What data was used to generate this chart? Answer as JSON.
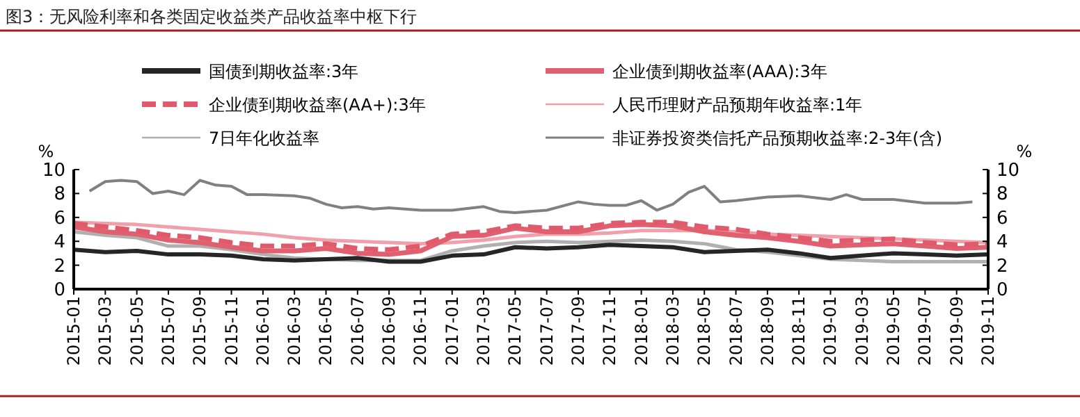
{
  "chart_data": {
    "type": "line",
    "title": "图3：无风险利率和各类固定收益类产品收益率中枢下行",
    "ylabel": "%",
    "y2label": "%",
    "xlim": [
      "2015-01",
      "2019-11"
    ],
    "xticks": [
      "2015-01",
      "2015-03",
      "2015-05",
      "2015-07",
      "2015-09",
      "2015-11",
      "2016-01",
      "2016-03",
      "2016-05",
      "2016-07",
      "2016-09",
      "2016-11",
      "2017-01",
      "2017-03",
      "2017-05",
      "2017-07",
      "2017-09",
      "2017-11",
      "2018-01",
      "2018-03",
      "2018-05",
      "2018-07",
      "2018-09",
      "2018-11",
      "2019-01",
      "2019-03",
      "2019-05",
      "2019-07",
      "2019-09",
      "2019-11"
    ],
    "ylim": [
      0,
      10
    ],
    "yticks": [
      0,
      2,
      4,
      6,
      8,
      10
    ],
    "y2lim": [
      0,
      10
    ],
    "y2ticks": [
      0,
      2,
      4,
      6,
      8,
      10
    ],
    "legend": "top",
    "grid": false,
    "marker": "none",
    "x": [
      "2015-01",
      "2015-03",
      "2015-05",
      "2015-07",
      "2015-09",
      "2015-11",
      "2016-01",
      "2016-03",
      "2016-05",
      "2016-07",
      "2016-09",
      "2016-11",
      "2017-01",
      "2017-03",
      "2017-05",
      "2017-07",
      "2017-09",
      "2017-11",
      "2018-01",
      "2018-03",
      "2018-05",
      "2018-07",
      "2018-09",
      "2018-11",
      "2019-01",
      "2019-03",
      "2019-05",
      "2019-07",
      "2019-09",
      "2019-11"
    ],
    "series": [
      {
        "name": "国债到期收益率:3年",
        "color": "#262626",
        "values": [
          3.3,
          3.1,
          3.2,
          2.9,
          2.9,
          2.8,
          2.5,
          2.4,
          2.5,
          2.6,
          2.3,
          2.3,
          2.8,
          2.9,
          3.5,
          3.4,
          3.5,
          3.7,
          3.6,
          3.5,
          3.1,
          3.2,
          3.3,
          3.0,
          2.6,
          2.8,
          3.0,
          2.9,
          2.8,
          2.9
        ]
      },
      {
        "name": "企业债到期收益率(AAA):3年",
        "color": "#e06070",
        "values": [
          5.2,
          4.8,
          4.6,
          4.1,
          3.9,
          3.5,
          3.2,
          3.2,
          3.4,
          3.0,
          2.9,
          3.2,
          4.4,
          4.5,
          5.1,
          4.8,
          4.8,
          5.3,
          5.4,
          5.3,
          4.8,
          4.5,
          4.3,
          4.0,
          3.6,
          3.7,
          3.8,
          3.6,
          3.4,
          3.5
        ]
      },
      {
        "name": "企业债到期收益率(AA+):3年",
        "color": "#e05a6c",
        "line_style": "dashed",
        "values": [
          5.5,
          5.2,
          4.9,
          4.5,
          4.3,
          3.9,
          3.6,
          3.6,
          3.8,
          3.4,
          3.3,
          3.6,
          4.6,
          4.8,
          5.3,
          5.1,
          5.1,
          5.5,
          5.6,
          5.6,
          5.2,
          5.0,
          4.6,
          4.3,
          4.0,
          4.1,
          4.2,
          3.9,
          3.7,
          3.8
        ]
      },
      {
        "name": "人民币理财产品预期年收益率:1年",
        "color": "#f0a0aa",
        "values": [
          5.6,
          5.5,
          5.4,
          5.2,
          5.0,
          4.8,
          4.6,
          4.3,
          4.1,
          4.0,
          3.9,
          3.8,
          3.9,
          4.1,
          4.4,
          4.6,
          4.6,
          4.7,
          4.9,
          4.9,
          4.9,
          4.8,
          4.6,
          4.5,
          4.4,
          4.3,
          4.2,
          4.1,
          4.0,
          3.9
        ]
      },
      {
        "name": "7日年化收益率",
        "color": "#b0b0b0",
        "values": [
          4.8,
          4.5,
          4.3,
          3.6,
          3.6,
          3.3,
          2.9,
          2.6,
          2.5,
          2.4,
          2.4,
          2.4,
          3.2,
          3.6,
          3.9,
          4.0,
          3.9,
          4.0,
          4.1,
          4.0,
          3.8,
          3.3,
          3.1,
          2.8,
          2.5,
          2.4,
          2.3,
          2.3,
          2.3,
          2.3
        ]
      },
      {
        "name": "非证券投资类信托产品预期收益率:2-3年(含)",
        "color": "#808080",
        "x": [
          "2015-02",
          "2015-03",
          "2015-04",
          "2015-05",
          "2015-06",
          "2015-07",
          "2015-08",
          "2015-09",
          "2015-10",
          "2015-11",
          "2015-12",
          "2016-01",
          "2016-03",
          "2016-04",
          "2016-05",
          "2016-06",
          "2016-07",
          "2016-08",
          "2016-09",
          "2016-10",
          "2016-11",
          "2017-01",
          "2017-03",
          "2017-04",
          "2017-05",
          "2017-07",
          "2017-09",
          "2017-10",
          "2017-11",
          "2017-12",
          "2018-01",
          "2018-02",
          "2018-03",
          "2018-04",
          "2018-05",
          "2018-06",
          "2018-07",
          "2018-09",
          "2018-11",
          "2019-01",
          "2019-02",
          "2019-03",
          "2019-05",
          "2019-07",
          "2019-09",
          "2019-10"
        ],
        "values": [
          8.2,
          9.0,
          9.1,
          9.0,
          8.0,
          8.2,
          7.9,
          9.1,
          8.7,
          8.6,
          7.9,
          7.9,
          7.8,
          7.6,
          7.1,
          6.8,
          6.9,
          6.7,
          6.8,
          6.7,
          6.6,
          6.6,
          6.9,
          6.5,
          6.4,
          6.6,
          7.3,
          7.1,
          7.0,
          7.0,
          7.4,
          6.6,
          7.1,
          8.1,
          8.6,
          7.3,
          7.4,
          7.7,
          7.8,
          7.5,
          7.9,
          7.5,
          7.5,
          7.2,
          7.2,
          7.3
        ]
      }
    ]
  }
}
